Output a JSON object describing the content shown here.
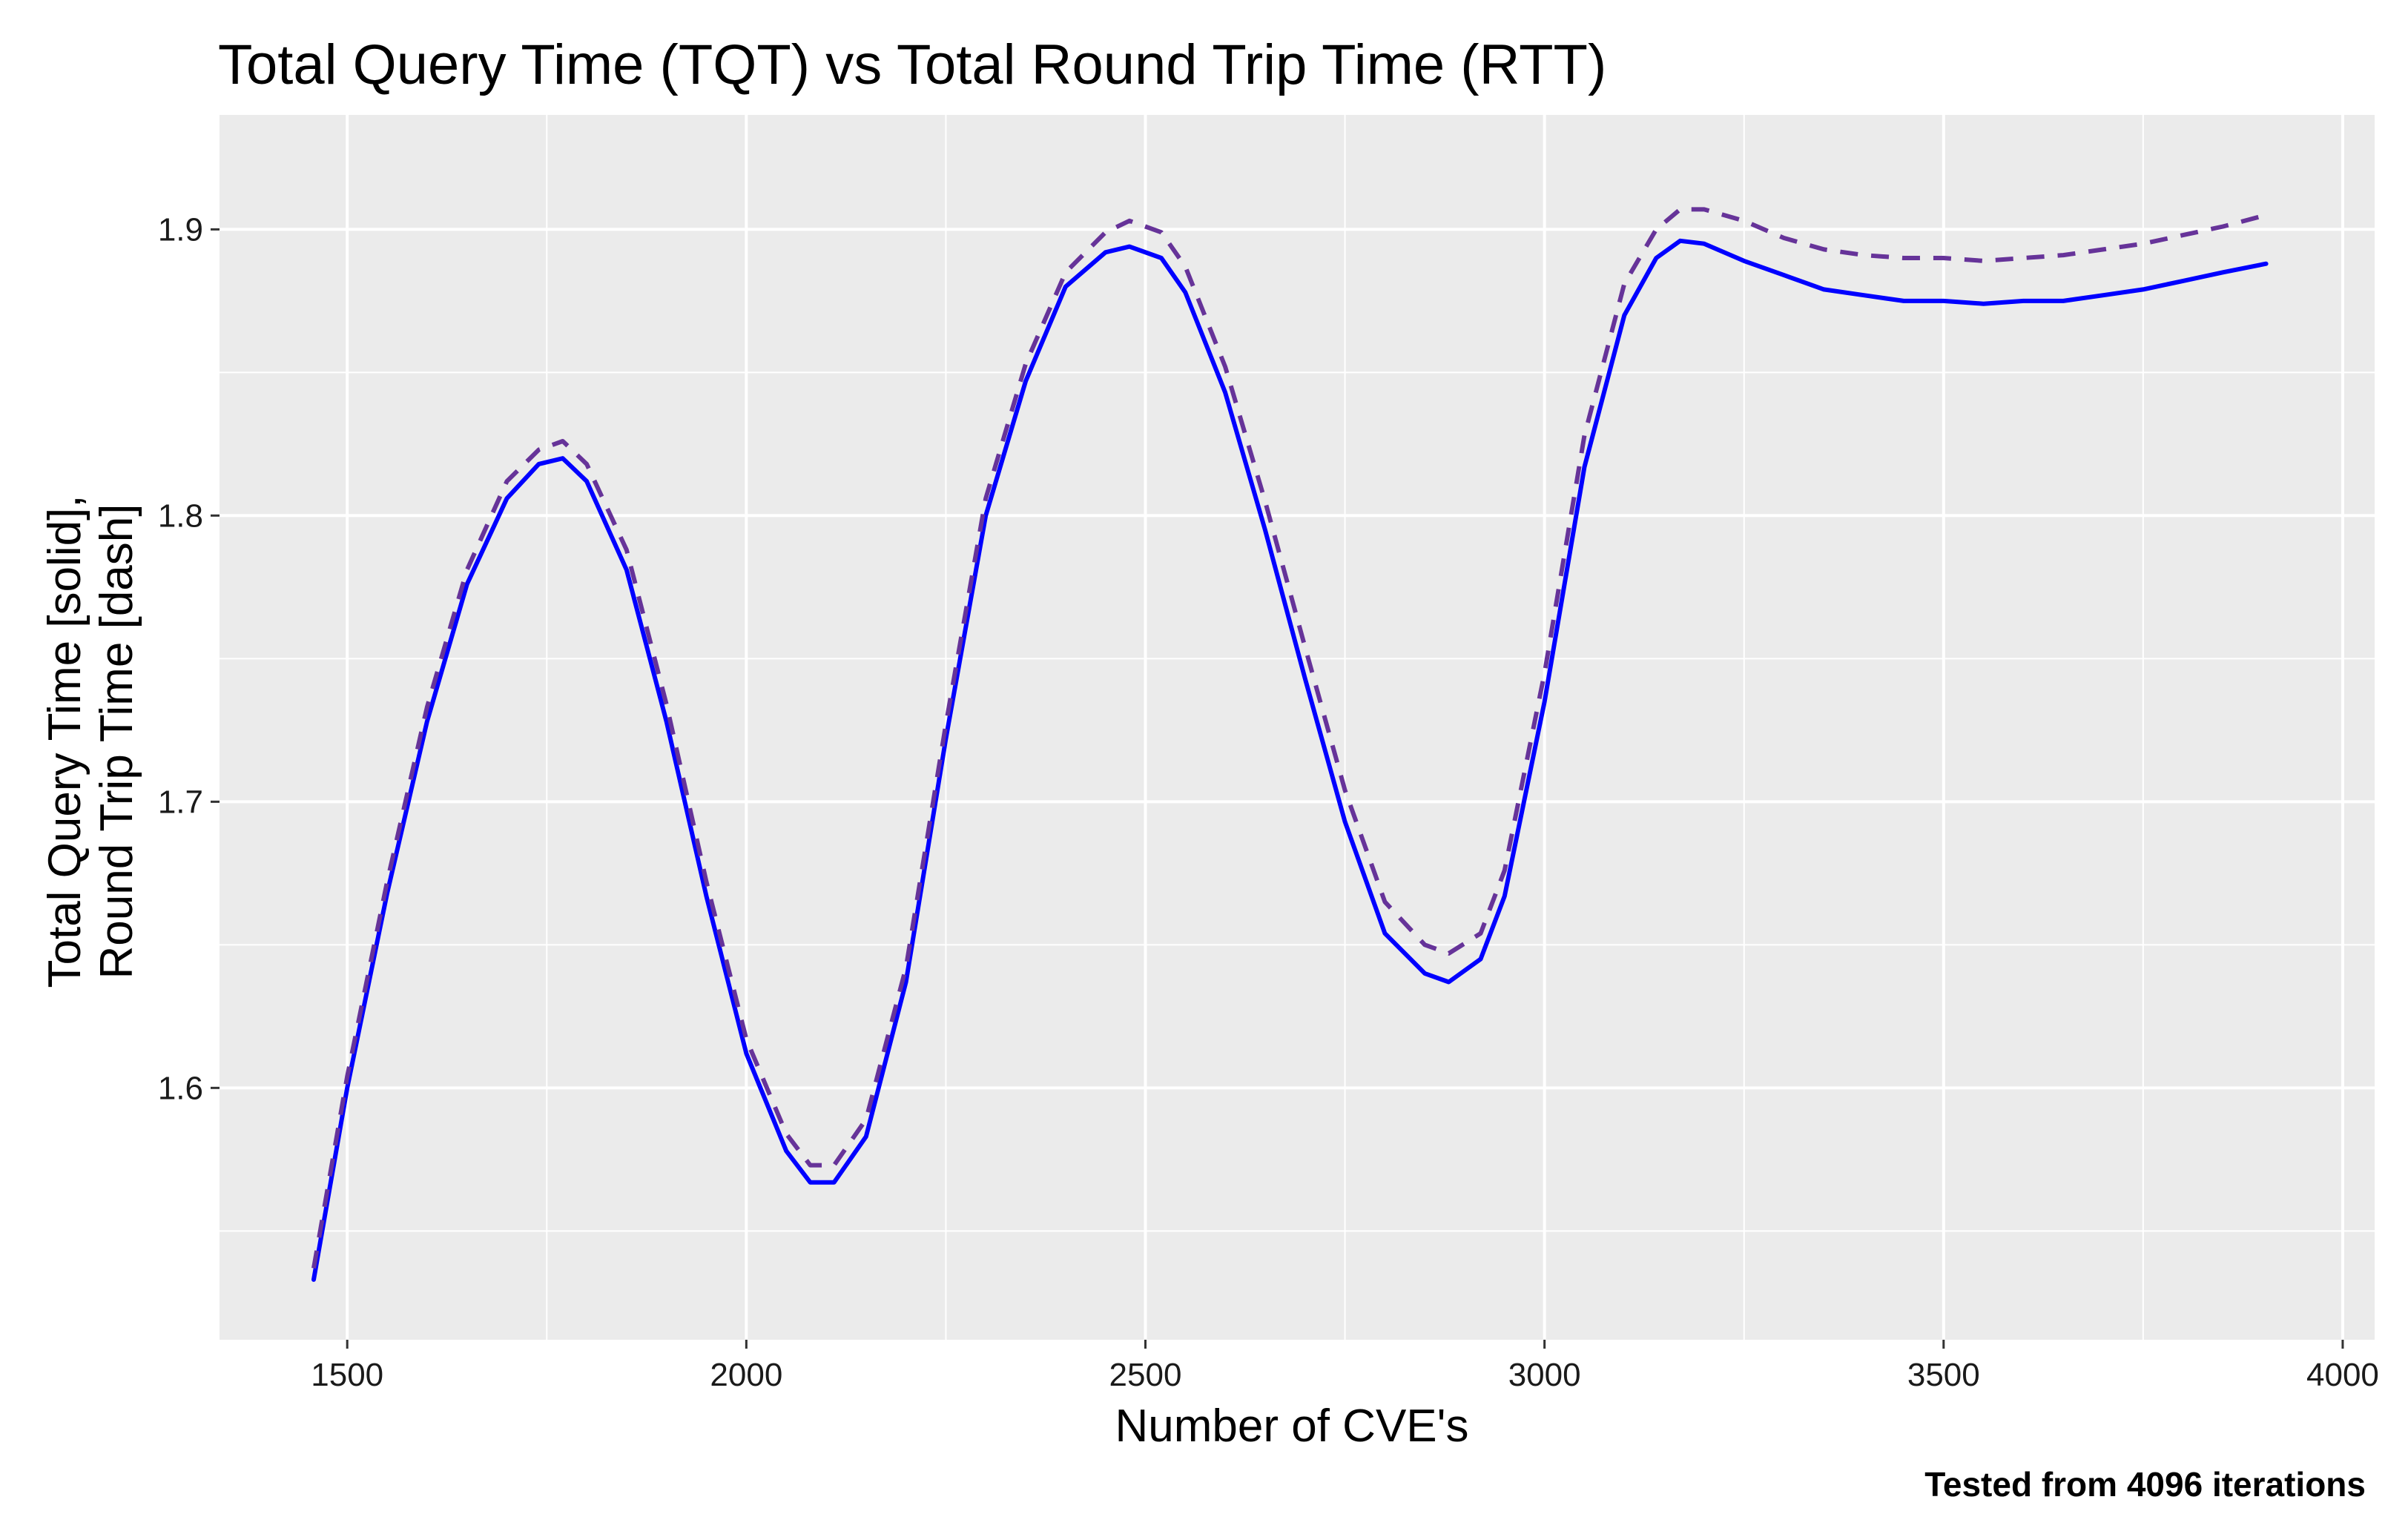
{
  "chart_data": {
    "type": "line",
    "title": "Total Query Time (TQT) vs Total Round Trip Time (RTT)",
    "xlabel": "Number of CVE's",
    "ylabel_lines": [
      "Total Query Time [solid],",
      "Round Trip Time [dash]"
    ],
    "caption": "Tested from 4096 iterations",
    "xlim": [
      1340,
      4040
    ],
    "ylim": [
      1.512,
      1.94
    ],
    "x_ticks": [
      1500,
      2000,
      2500,
      3000,
      3500,
      4000
    ],
    "x_tick_labels": [
      "1500",
      "2000",
      "2500",
      "3000",
      "3500",
      "4000"
    ],
    "y_ticks": [
      1.6,
      1.7,
      1.8,
      1.9
    ],
    "y_tick_labels": [
      "1.6",
      "1.7",
      "1.8",
      "1.9"
    ],
    "y_minor_ticks": [
      1.55,
      1.65,
      1.75,
      1.85
    ],
    "x_minor_ticks": [
      1750,
      2250,
      2750,
      3250,
      3750
    ],
    "grid": true,
    "background": "#ebebeb",
    "series": [
      {
        "line": "solid",
        "color": "#0000ff",
        "x": [
          1458,
          1500,
          1550,
          1600,
          1650,
          1700,
          1740,
          1770,
          1800,
          1850,
          1900,
          1950,
          2000,
          2050,
          2080,
          2110,
          2150,
          2200,
          2250,
          2300,
          2350,
          2400,
          2450,
          2480,
          2520,
          2550,
          2600,
          2650,
          2700,
          2750,
          2800,
          2850,
          2880,
          2920,
          2950,
          3000,
          3050,
          3100,
          3140,
          3170,
          3200,
          3250,
          3300,
          3350,
          3400,
          3450,
          3500,
          3550,
          3600,
          3650,
          3700,
          3750,
          3800,
          3850,
          3904
        ],
        "y": [
          1.533,
          1.6,
          1.668,
          1.728,
          1.776,
          1.806,
          1.818,
          1.82,
          1.812,
          1.781,
          1.728,
          1.667,
          1.612,
          1.578,
          1.567,
          1.567,
          1.583,
          1.637,
          1.722,
          1.8,
          1.847,
          1.88,
          1.892,
          1.894,
          1.89,
          1.878,
          1.843,
          1.795,
          1.743,
          1.693,
          1.654,
          1.64,
          1.637,
          1.645,
          1.667,
          1.735,
          1.817,
          1.87,
          1.89,
          1.896,
          1.895,
          1.889,
          1.884,
          1.879,
          1.877,
          1.875,
          1.875,
          1.874,
          1.875,
          1.875,
          1.877,
          1.879,
          1.882,
          1.885,
          1.888
        ]
      },
      {
        "line": "dashed",
        "color": "#663399",
        "x": [
          1458,
          1500,
          1550,
          1600,
          1650,
          1700,
          1740,
          1770,
          1800,
          1850,
          1900,
          1950,
          2000,
          2050,
          2080,
          2110,
          2150,
          2200,
          2250,
          2300,
          2350,
          2400,
          2450,
          2480,
          2520,
          2550,
          2600,
          2650,
          2700,
          2750,
          2800,
          2850,
          2880,
          2920,
          2950,
          3000,
          3050,
          3100,
          3140,
          3170,
          3200,
          3250,
          3300,
          3350,
          3400,
          3450,
          3500,
          3550,
          3600,
          3650,
          3700,
          3750,
          3800,
          3850,
          3904
        ],
        "y": [
          1.537,
          1.604,
          1.672,
          1.733,
          1.781,
          1.812,
          1.823,
          1.826,
          1.818,
          1.788,
          1.734,
          1.672,
          1.617,
          1.584,
          1.573,
          1.573,
          1.589,
          1.642,
          1.727,
          1.806,
          1.853,
          1.885,
          1.899,
          1.903,
          1.899,
          1.887,
          1.852,
          1.805,
          1.754,
          1.704,
          1.665,
          1.65,
          1.647,
          1.654,
          1.676,
          1.745,
          1.828,
          1.881,
          1.9,
          1.907,
          1.907,
          1.903,
          1.897,
          1.893,
          1.891,
          1.89,
          1.89,
          1.889,
          1.89,
          1.891,
          1.893,
          1.895,
          1.898,
          1.901,
          1.905
        ]
      }
    ]
  }
}
